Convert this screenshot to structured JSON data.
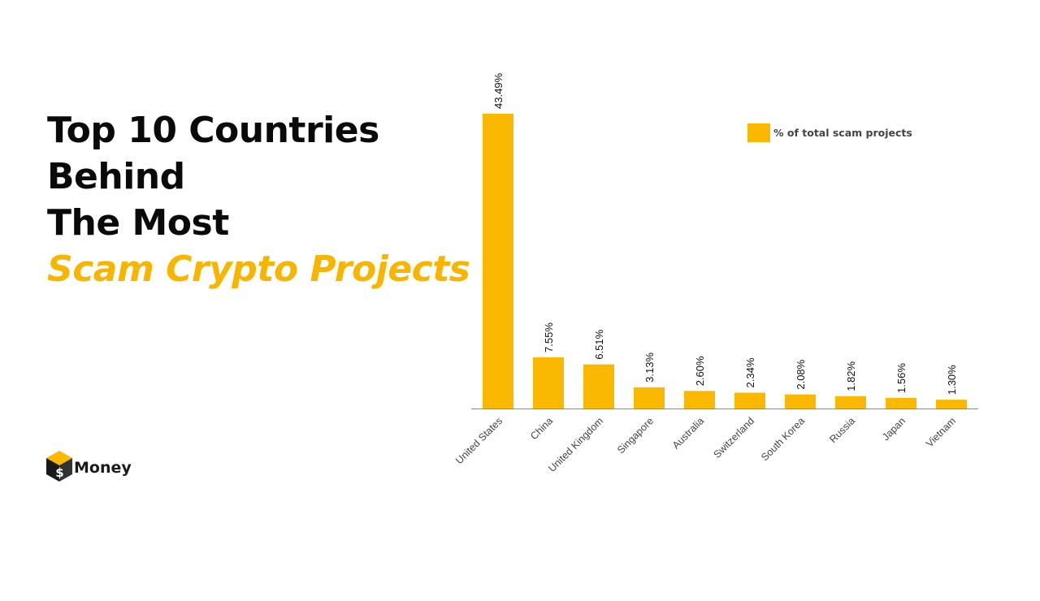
{
  "title": {
    "lines": [
      "Top 10 Countries",
      "Behind",
      "The Most"
    ],
    "accent_line": "Scam Crypto Projects"
  },
  "brand": {
    "name": "Money",
    "icon": "cube-dollar-icon"
  },
  "colors": {
    "bar": "#fbb800",
    "accent": "#f7b500",
    "text": "#0a0a0a",
    "axis": "#555555"
  },
  "chart_data": {
    "type": "bar",
    "categories": [
      "United States",
      "China",
      "United Kingdom",
      "Singapore",
      "Australia",
      "Switzerland",
      "South Korea",
      "Russia",
      "Japan",
      "Vietnam"
    ],
    "series": [
      {
        "name": "% of total scam projects",
        "values": [
          43.49,
          7.55,
          6.51,
          3.13,
          2.6,
          2.34,
          2.08,
          1.82,
          1.56,
          1.3
        ]
      }
    ],
    "data_labels": [
      "43.49%",
      "7.55%",
      "6.51%",
      "3.13%",
      "2.60%",
      "2.34%",
      "2.08%",
      "1.82%",
      "1.56%",
      "1.30%"
    ],
    "ylim": [
      0,
      43.49
    ],
    "grid": false,
    "legend": "top-right"
  }
}
